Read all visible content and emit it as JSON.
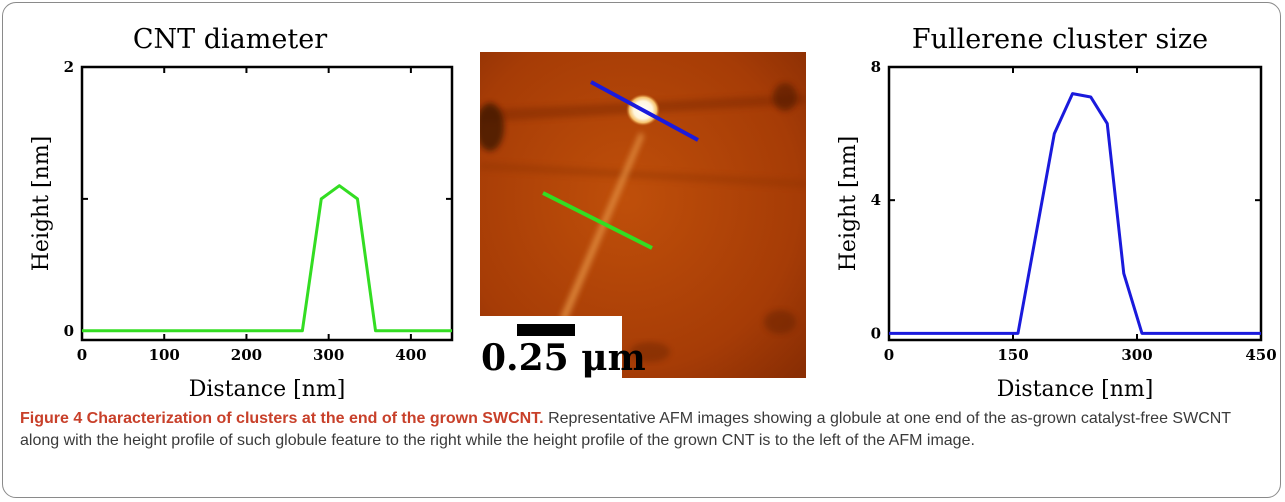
{
  "figure": {
    "caption_title": "Figure 4 Characterization of clusters at the end of the grown SWCNT.",
    "caption_text": "Representative AFM images showing a globule at one end of the as-grown catalyst-free SWCNT along with the height profile of such globule feature to the right while the height profile of the grown CNT is to the left of the AFM image.",
    "scale_bar_label": "0.25 μm"
  },
  "chart_data": [
    {
      "type": "line",
      "title": "CNT diameter",
      "xlabel": "Distance [nm]",
      "ylabel": "Height [nm]",
      "xlim": [
        0,
        450
      ],
      "ylim": [
        -0.07,
        2
      ],
      "xticks": [
        0,
        100,
        200,
        300,
        400
      ],
      "yticks": [
        0,
        2
      ],
      "ytick_marks": [
        0,
        1,
        2
      ],
      "grid": false,
      "series": [
        {
          "color": "#33dd22",
          "x": [
            0,
            268,
            291,
            313,
            335,
            357,
            450
          ],
          "y": [
            0,
            0,
            1.0,
            1.1,
            1.0,
            0,
            0
          ]
        }
      ]
    },
    {
      "type": "line",
      "title": "Fullerene cluster size",
      "xlabel": "Distance [nm]",
      "ylabel": "Height [nm]",
      "xlim": [
        0,
        450
      ],
      "ylim": [
        -0.2,
        8
      ],
      "xticks": [
        0,
        150,
        300,
        450
      ],
      "yticks": [
        0,
        4,
        8
      ],
      "grid": false,
      "series": [
        {
          "color": "#1a1adc",
          "x": [
            0,
            156,
            178,
            200,
            222,
            244,
            264,
            284,
            306,
            450
          ],
          "y": [
            0,
            0,
            3.0,
            6.0,
            7.2,
            7.1,
            6.3,
            1.8,
            0,
            0
          ]
        }
      ]
    }
  ]
}
